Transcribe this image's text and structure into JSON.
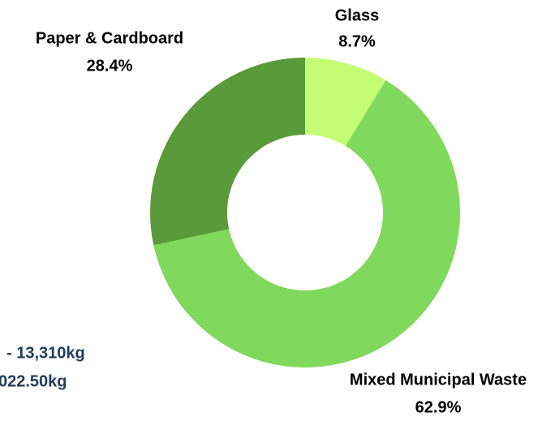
{
  "chart_data": {
    "type": "donut",
    "categories": [
      "Glass",
      "Mixed Municipal Waste",
      "Paper & Cardboard"
    ],
    "values": [
      8.7,
      62.9,
      28.4
    ],
    "value_labels": [
      "8.7%",
      "62.9%",
      "28.4%"
    ],
    "colors": [
      "#c4fc74",
      "#80d95c",
      "#5a9a3a"
    ],
    "annotations": [
      "- 13,310kg",
      "022.50kg"
    ]
  }
}
